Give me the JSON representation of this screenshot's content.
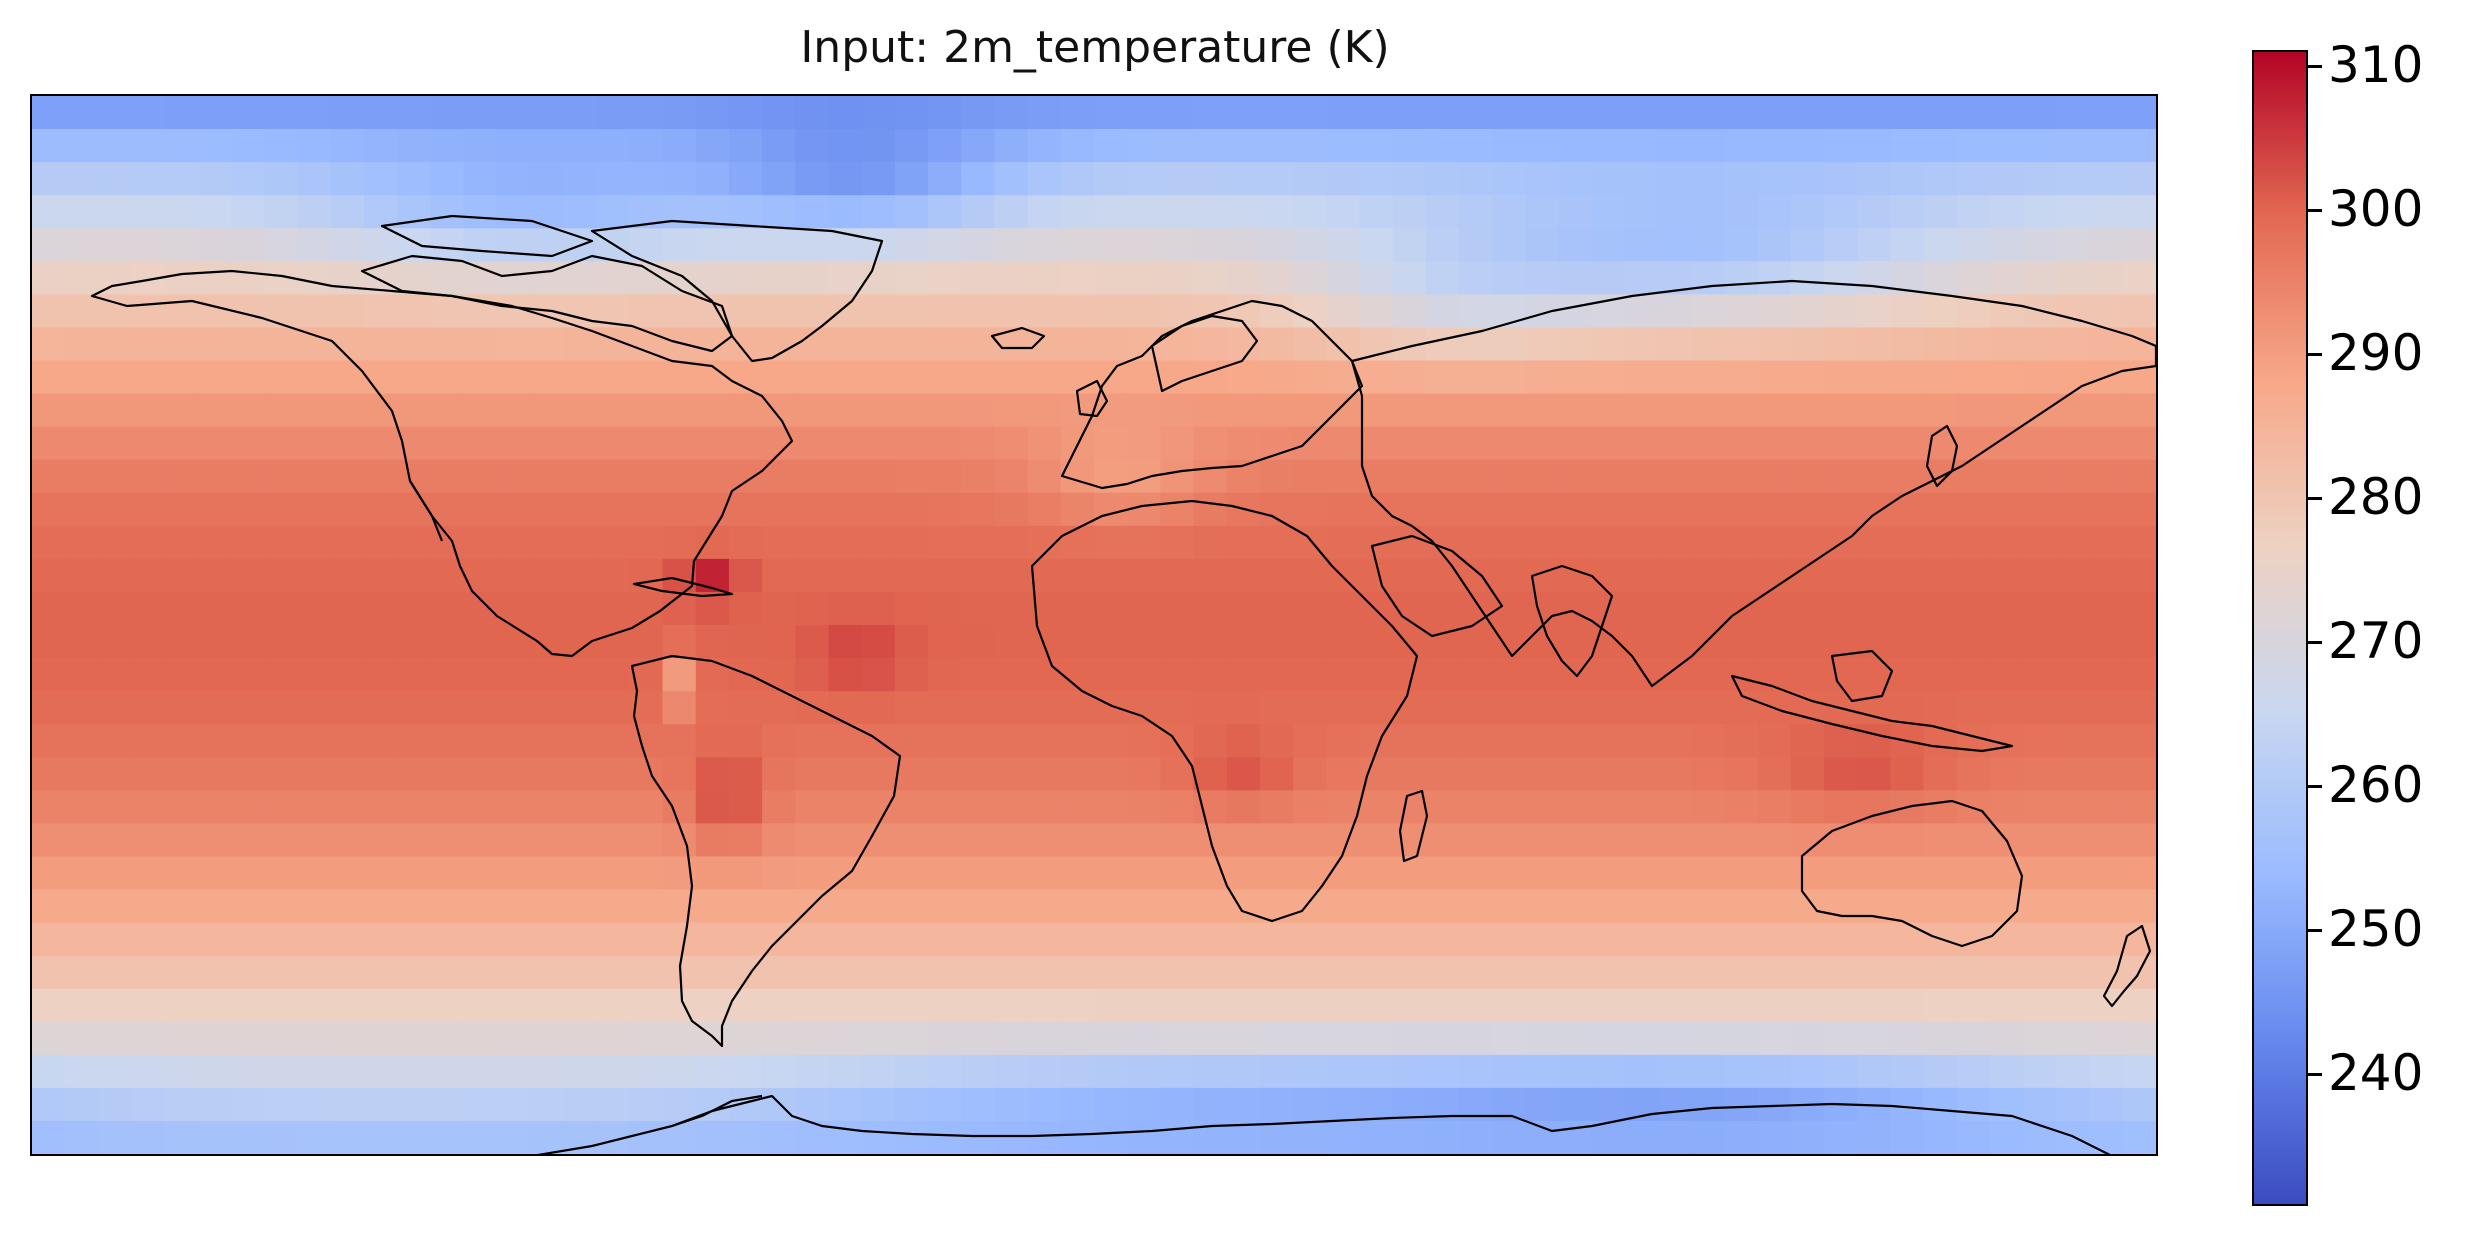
{
  "title": "Input: 2m_temperature (K)",
  "colorbar": {
    "label_ticks": [
      240,
      250,
      260,
      270,
      280,
      290,
      300,
      310
    ],
    "min": 231,
    "max": 311,
    "colormap": "coolwarm",
    "colors": [
      "#3b4cc0",
      "#6688ee",
      "#9abbff",
      "#c9d7f0",
      "#edd1c2",
      "#f7a889",
      "#e26952",
      "#b40426"
    ]
  },
  "grid": {
    "cols": 64,
    "rows": 32,
    "lon_range": [
      -180,
      180
    ],
    "lat_range": [
      -90,
      90
    ],
    "land_outline_color": "#000000"
  }
}
